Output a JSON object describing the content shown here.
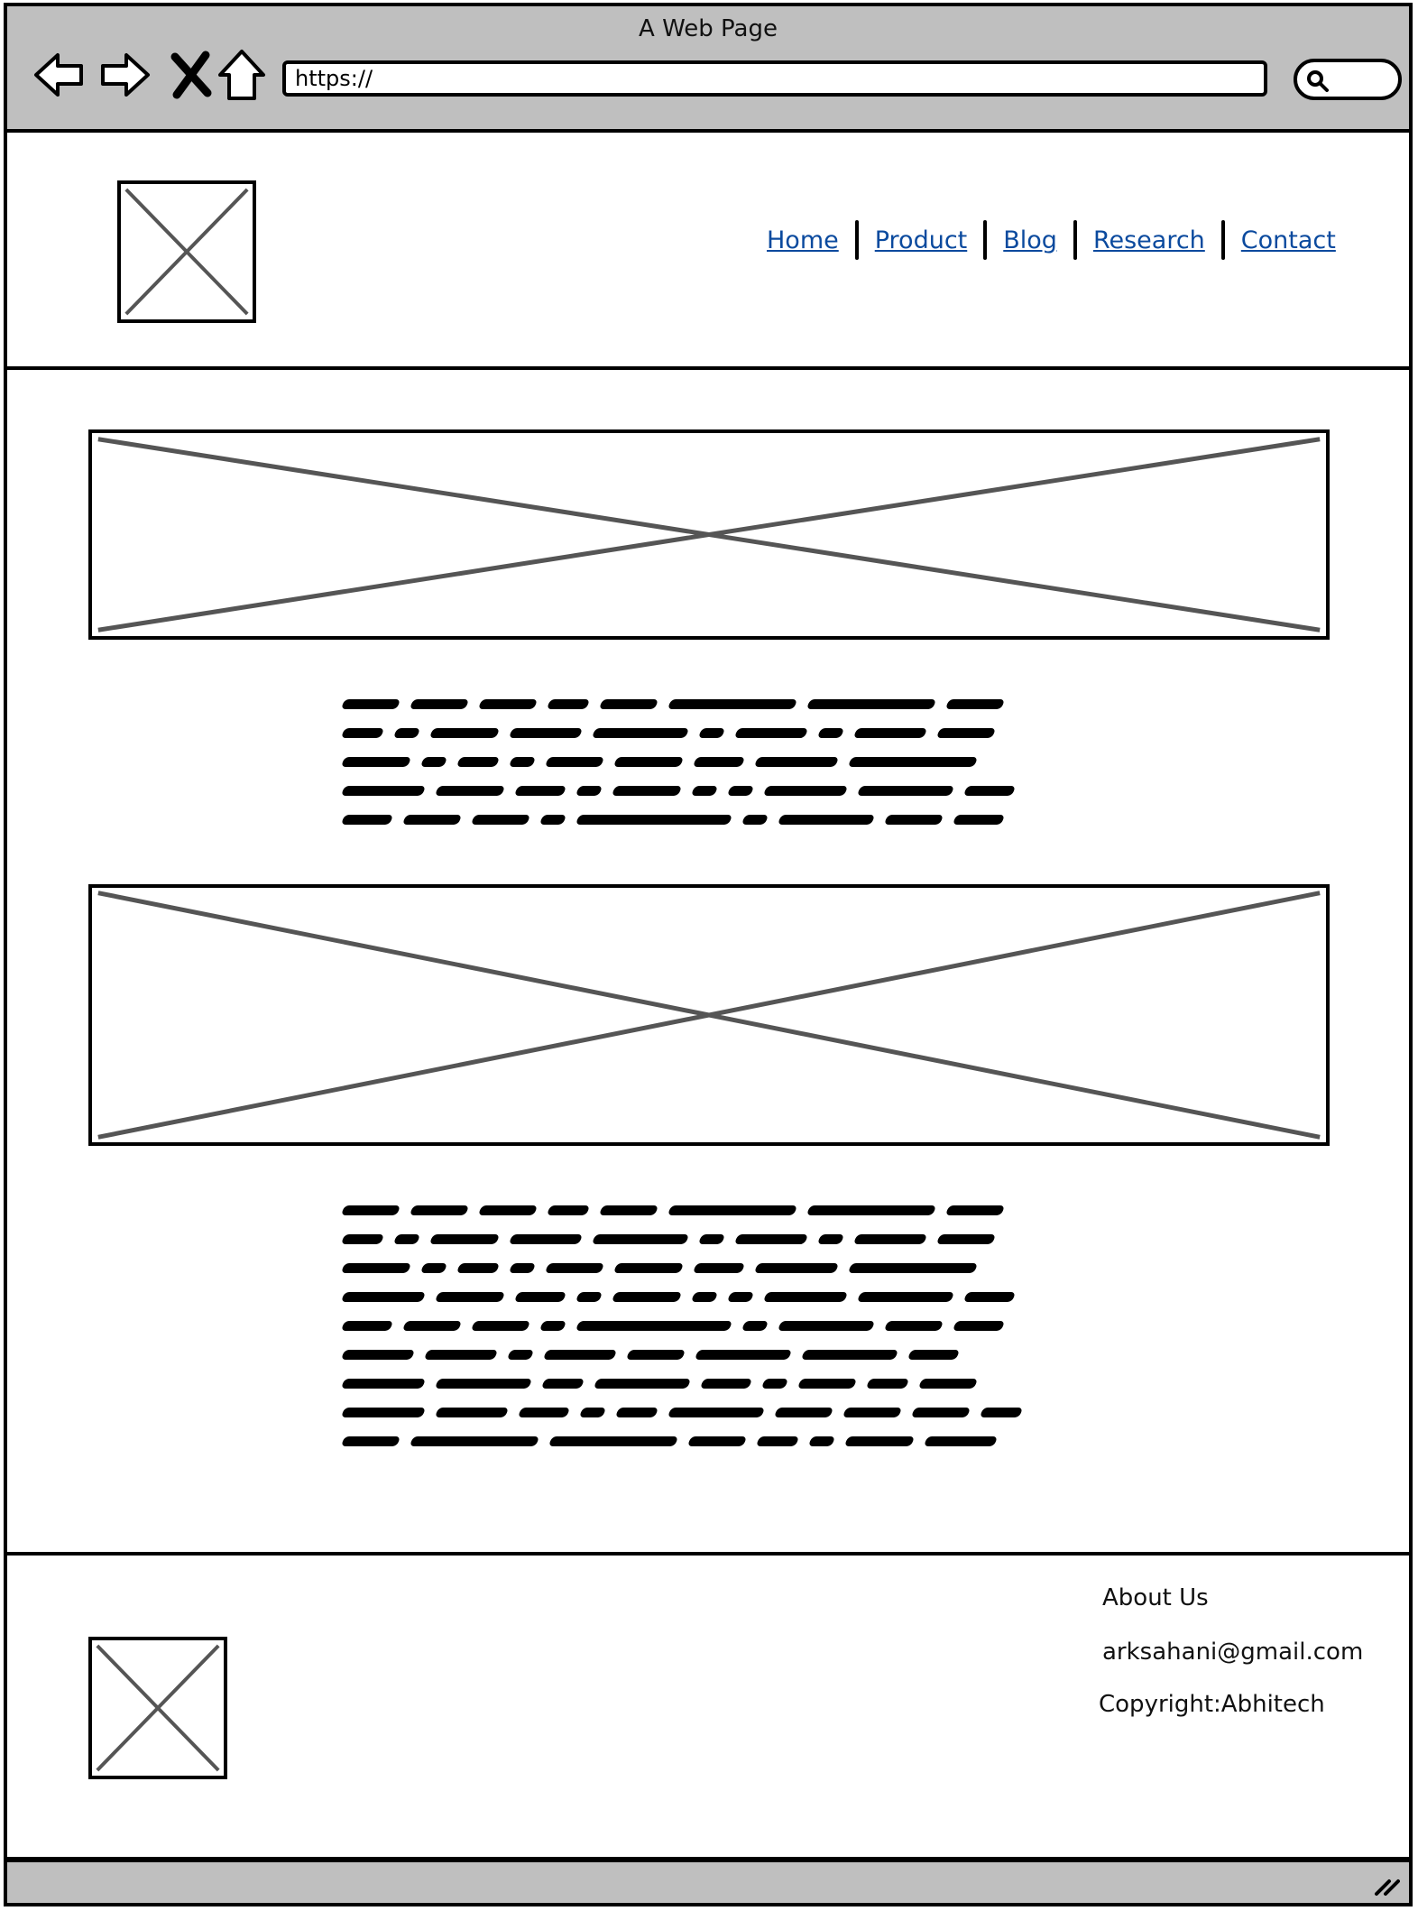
{
  "browser": {
    "title": "A Web Page",
    "url": "https://",
    "icons": [
      "back-arrow-icon",
      "forward-arrow-icon",
      "stop-icon",
      "home-icon",
      "search-icon"
    ]
  },
  "header": {
    "logo_icon": "image-placeholder-icon",
    "nav": [
      {
        "label": "Home"
      },
      {
        "label": "Product"
      },
      {
        "label": "Blog"
      },
      {
        "label": "Research"
      },
      {
        "label": "Contact"
      }
    ],
    "link_color": "#0b4a9e"
  },
  "main": {
    "images": [
      "image-placeholder-icon",
      "image-placeholder-icon"
    ],
    "text_blocks": [
      {
        "lines": 5
      },
      {
        "lines": 9
      }
    ]
  },
  "footer": {
    "logo_icon": "image-placeholder-icon",
    "about": "About Us",
    "email": "arksahani@gmail.com",
    "copyright": "Copyright:Abhitech"
  },
  "colors": {
    "chrome": "#bfbfbf",
    "placeholder_cross": "#555555"
  }
}
